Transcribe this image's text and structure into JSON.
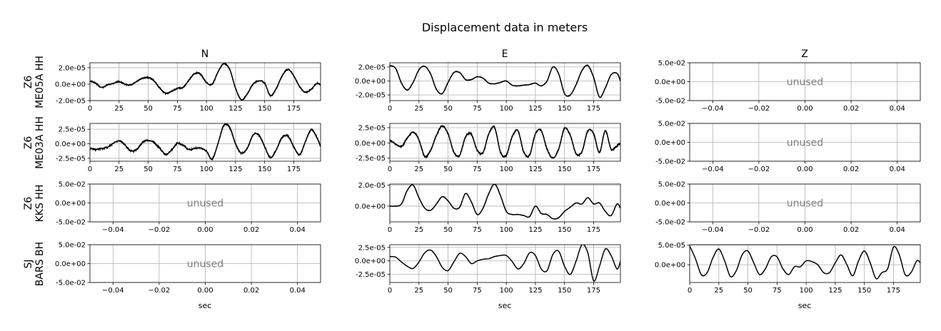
{
  "figure": {
    "title": "Displacement data in meters",
    "xlabel": "sec",
    "unused_label": "unused"
  },
  "columns": [
    "N",
    "E",
    "Z"
  ],
  "rows": [
    {
      "label_line1": "Z6",
      "label_line2": "ME05A HH"
    },
    {
      "label_line1": "Z6",
      "label_line2": "ME03A HH"
    },
    {
      "label_line1": "Z6",
      "label_line2": "KKS HH"
    },
    {
      "label_line1": "SJ",
      "label_line2": "BARS BH"
    }
  ],
  "chart_data": [
    {
      "type": "line",
      "row": 0,
      "col": 0,
      "used": true,
      "xlim": [
        0,
        198
      ],
      "ylim": [
        -2e-05,
        2.6e-05
      ],
      "xticks": [
        "0",
        "25",
        "50",
        "75",
        "100",
        "125",
        "150",
        "175"
      ],
      "yticks": [
        "2.0e-05",
        "0.0e+00",
        "-2.0e-05"
      ],
      "grid": true,
      "series": [
        {
          "x": [
            0,
            5,
            10,
            15,
            20,
            25,
            30,
            35,
            40,
            45,
            50,
            55,
            60,
            65,
            70,
            75,
            80,
            85,
            90,
            95,
            100,
            105,
            110,
            115,
            120,
            125,
            130,
            135,
            140,
            145,
            150,
            155,
            160,
            165,
            170,
            175,
            180,
            185,
            190,
            195,
            198
          ],
          "y": [
            4e-06,
            1e-06,
            -4e-06,
            -1e-06,
            1e-06,
            3e-06,
            0,
            -1e-06,
            3e-06,
            7e-06,
            8e-06,
            4e-06,
            -5e-06,
            -1.1e-05,
            -9e-06,
            -5e-06,
            -4e-06,
            5e-06,
            1.3e-05,
            1.2e-05,
            2e-06,
            0,
            1.5e-05,
            2.5e-05,
            1.8e-05,
            -5e-06,
            -1.9e-05,
            -1.2e-05,
            0,
            4e-06,
            1e-06,
            -1.4e-05,
            -5e-06,
            1e-05,
            1.8e-05,
            1e-05,
            -3e-06,
            -1e-05,
            -6e-06,
            1e-06,
            -1e-06
          ],
          "noise": 1e-06
        }
      ]
    },
    {
      "type": "line",
      "row": 0,
      "col": 1,
      "used": true,
      "xlim": [
        0,
        198
      ],
      "ylim": [
        -2.8e-05,
        2.6e-05
      ],
      "xticks": [
        "0",
        "25",
        "50",
        "75",
        "100",
        "125",
        "150",
        "175"
      ],
      "yticks": [
        "2.0e-05",
        "0.0e+00",
        "-2.0e-05"
      ],
      "grid": true,
      "series": [
        {
          "x": [
            0,
            5,
            10,
            15,
            20,
            25,
            30,
            35,
            40,
            45,
            50,
            55,
            60,
            65,
            70,
            75,
            80,
            85,
            90,
            95,
            100,
            105,
            110,
            115,
            120,
            125,
            130,
            135,
            140,
            145,
            150,
            155,
            160,
            165,
            170,
            175,
            180,
            185,
            190,
            195,
            198
          ],
          "y": [
            2.2e-05,
            1.8e-05,
            -3e-06,
            -1.3e-05,
            -2e-06,
            1.6e-05,
            2.1e-05,
            1e-05,
            -1.2e-05,
            -1.8e-05,
            -2e-06,
            1.2e-05,
            1.2e-05,
            2e-06,
            2e-06,
            6e-06,
            4e-06,
            -3e-06,
            -4e-06,
            -2e-06,
            0,
            -6e-06,
            -7e-06,
            -6e-06,
            -5e-06,
            -3e-06,
            -7e-06,
            0,
            2e-05,
            1e-05,
            -1.8e-05,
            -2e-05,
            -5e-06,
            1.5e-05,
            2.2e-05,
            5e-06,
            -2.3e-05,
            -1e-05,
            9e-06,
            1.1e-05,
            0
          ],
          "noise": 6e-07
        }
      ]
    },
    {
      "type": "line",
      "row": 0,
      "col": 2,
      "used": false,
      "xlim": [
        -0.05,
        0.05
      ],
      "ylim": [
        -0.05,
        0.05
      ],
      "xticks": [
        "−0.04",
        "−0.02",
        "0.00",
        "0.02",
        "0.04"
      ],
      "yticks": [
        "5.0e-02",
        "0.0e+00",
        "-5.0e-02"
      ],
      "grid": true,
      "series": []
    },
    {
      "type": "line",
      "row": 1,
      "col": 0,
      "used": true,
      "xlim": [
        0,
        198
      ],
      "ylim": [
        -3e-05,
        3.5e-05
      ],
      "xticks": [
        "0",
        "25",
        "50",
        "75",
        "100",
        "125",
        "150",
        "175"
      ],
      "yticks": [
        "2.5e-05",
        "0.0e+00",
        "-2.5e-05"
      ],
      "grid": true,
      "series": [
        {
          "x": [
            0,
            5,
            10,
            15,
            20,
            25,
            30,
            35,
            40,
            45,
            50,
            55,
            60,
            65,
            70,
            75,
            80,
            85,
            90,
            95,
            100,
            105,
            110,
            115,
            120,
            125,
            130,
            135,
            140,
            145,
            150,
            155,
            160,
            165,
            170,
            175,
            180,
            185,
            190,
            195,
            198
          ],
          "y": [
            -8e-06,
            -1e-05,
            -8e-06,
            -6e-06,
            1e-06,
            5e-06,
            -2e-06,
            -1.2e-05,
            -1e-05,
            2e-06,
            6e-06,
            2e-06,
            -8e-06,
            -1.8e-05,
            -1.1e-05,
            1e-06,
            -3e-06,
            -1e-05,
            -8e-06,
            -7e-06,
            -1.3e-05,
            -2.6e-05,
            1e-06,
            3.2e-05,
            2.8e-05,
            0,
            -1.6e-05,
            -8e-06,
            1.5e-05,
            1.5e-05,
            -5e-06,
            -2.4e-05,
            -1e-05,
            1.1e-05,
            1.3e-05,
            -5e-06,
            -1.9e-05,
            4e-06,
            2.4e-05,
            1e-05,
            -5e-06
          ],
          "noise": 2e-06
        }
      ]
    },
    {
      "type": "line",
      "row": 1,
      "col": 1,
      "used": true,
      "xlim": [
        0,
        198
      ],
      "ylim": [
        -3e-05,
        3.2e-05
      ],
      "xticks": [
        "0",
        "25",
        "50",
        "75",
        "100",
        "125",
        "150",
        "175"
      ],
      "yticks": [
        "2.5e-05",
        "0.0e+00",
        "-2.5e-05"
      ],
      "grid": true,
      "series": [
        {
          "x": [
            0,
            5,
            10,
            15,
            20,
            25,
            30,
            35,
            40,
            45,
            50,
            55,
            60,
            65,
            70,
            75,
            80,
            85,
            90,
            95,
            100,
            105,
            110,
            115,
            120,
            125,
            130,
            135,
            140,
            145,
            150,
            155,
            160,
            165,
            170,
            175,
            180,
            185,
            190,
            195,
            198
          ],
          "y": [
            5e-06,
            -2e-06,
            -6e-06,
            8e-06,
            1.8e-05,
            5e-06,
            -2.2e-05,
            -1.2e-05,
            1.2e-05,
            2.8e-05,
            1.5e-05,
            -1.5e-05,
            -2e-05,
            1e-05,
            1.4e-05,
            -1.2e-05,
            -1.6e-05,
            1.5e-05,
            2.5e-05,
            -1.5e-05,
            -2e-05,
            1e-05,
            2e-05,
            -1.5e-05,
            -2e-05,
            1.5e-05,
            2e-05,
            -1e-05,
            -2.5e-05,
            -1e-05,
            2.4e-05,
            1.2e-05,
            -1.8e-05,
            -1.4e-05,
            2e-05,
            1.5e-05,
            -1.6e-05,
            2e-05,
            -1e-05,
            -5e-06,
            0
          ],
          "noise": 2e-06
        }
      ]
    },
    {
      "type": "line",
      "row": 1,
      "col": 2,
      "used": false,
      "xlim": [
        -0.05,
        0.05
      ],
      "ylim": [
        -0.05,
        0.05
      ],
      "xticks": [
        "−0.04",
        "−0.02",
        "0.00",
        "0.02",
        "0.04"
      ],
      "yticks": [
        "5.0e-02",
        "0.0e+00",
        "-5.0e-02"
      ],
      "grid": true,
      "series": []
    },
    {
      "type": "line",
      "row": 2,
      "col": 0,
      "used": false,
      "xlim": [
        -0.05,
        0.05
      ],
      "ylim": [
        -0.05,
        0.05
      ],
      "xticks": [
        "−0.04",
        "−0.02",
        "0.00",
        "0.02",
        "0.04"
      ],
      "yticks": [
        "5.0e-02",
        "0.0e+00",
        "-5.0e-02"
      ],
      "grid": true,
      "series": []
    },
    {
      "type": "line",
      "row": 2,
      "col": 1,
      "used": true,
      "xlim": [
        0,
        198
      ],
      "ylim": [
        -1.5e-05,
        2.1e-05
      ],
      "xticks": [
        "0",
        "25",
        "50",
        "75",
        "100",
        "125",
        "150",
        "175"
      ],
      "yticks": [
        "2.0e-05",
        "0.0e+00"
      ],
      "grid": true,
      "series": [
        {
          "x": [
            0,
            5,
            10,
            15,
            20,
            25,
            30,
            35,
            40,
            45,
            50,
            55,
            60,
            65,
            70,
            75,
            80,
            85,
            90,
            95,
            100,
            105,
            110,
            115,
            120,
            125,
            130,
            135,
            140,
            145,
            150,
            155,
            160,
            165,
            170,
            175,
            180,
            185,
            190,
            195,
            198
          ],
          "y": [
            0,
            0,
            2e-06,
            1.5e-05,
            2e-05,
            8e-06,
            -2e-06,
            -4e-06,
            2e-06,
            9e-06,
            5e-06,
            -2e-06,
            -1e-06,
            1.2e-05,
            4e-06,
            -8e-06,
            -2e-06,
            1.2e-05,
            2.1e-05,
            1e-05,
            -5e-06,
            -8e-06,
            -8e-06,
            -9e-06,
            -1e-05,
            0,
            -7e-06,
            -8e-06,
            -1.2e-05,
            -1.1e-05,
            -5e-06,
            -1e-06,
            3e-06,
            2e-06,
            8e-06,
            2e-06,
            3e-06,
            -5e-06,
            -9e-06,
            2e-06,
            -2e-06
          ],
          "noise": 3e-07
        }
      ]
    },
    {
      "type": "line",
      "row": 2,
      "col": 2,
      "used": false,
      "xlim": [
        -0.05,
        0.05
      ],
      "ylim": [
        -0.05,
        0.05
      ],
      "xticks": [
        "−0.04",
        "−0.02",
        "0.00",
        "0.02",
        "0.04"
      ],
      "yticks": [
        "5.0e-02",
        "0.0e+00",
        "-5.0e-02"
      ],
      "grid": true,
      "series": []
    },
    {
      "type": "line",
      "row": 3,
      "col": 0,
      "used": false,
      "xlim": [
        -0.05,
        0.05
      ],
      "ylim": [
        -0.05,
        0.05
      ],
      "xticks": [
        "−0.04",
        "−0.02",
        "0.00",
        "0.02",
        "0.04"
      ],
      "yticks": [
        "5.0e-02",
        "0.0e+00",
        "-5.0e-02"
      ],
      "grid": true,
      "series": []
    },
    {
      "type": "line",
      "row": 3,
      "col": 1,
      "used": true,
      "xlim": [
        0,
        198
      ],
      "ylim": [
        -4e-05,
        3e-05
      ],
      "xticks": [
        "0",
        "25",
        "50",
        "75",
        "100",
        "125",
        "150",
        "175"
      ],
      "yticks": [
        "2.5e-05",
        "0.0e+00",
        "-2.5e-05"
      ],
      "grid": true,
      "series": [
        {
          "x": [
            0,
            5,
            10,
            15,
            20,
            25,
            30,
            35,
            40,
            45,
            50,
            55,
            60,
            65,
            70,
            75,
            80,
            85,
            90,
            95,
            100,
            105,
            110,
            115,
            120,
            125,
            130,
            135,
            140,
            145,
            150,
            155,
            160,
            165,
            170,
            175,
            180,
            185,
            190,
            195,
            198
          ],
          "y": [
            8e-06,
            7e-06,
            -2e-06,
            -1e-05,
            -1.4e-05,
            -2e-06,
            1.5e-05,
            2e-05,
            8e-06,
            -1.2e-05,
            -1.8e-05,
            -2e-06,
            1.4e-05,
            8e-06,
            -5e-06,
            0,
            3e-06,
            4e-06,
            8e-06,
            1e-05,
            1e-05,
            -1e-06,
            -1.5e-05,
            -5e-06,
            1.5e-05,
            1e-05,
            -1.5e-05,
            -1.8e-05,
            1.2e-05,
            1.8e-05,
            -1e-05,
            -2.5e-05,
            0,
            3e-05,
            1.5e-05,
            -3.7e-05,
            -1e-05,
            2.2e-05,
            1e-05,
            -1.5e-05,
            -1e-06
          ],
          "noise": 0
        }
      ]
    },
    {
      "type": "line",
      "row": 3,
      "col": 2,
      "used": true,
      "xlim": [
        0,
        198
      ],
      "ylim": [
        -4.5e-05,
        5.1e-05
      ],
      "xticks": [
        "0",
        "25",
        "50",
        "75",
        "100",
        "125",
        "150",
        "175"
      ],
      "yticks": [
        "5.0e-05",
        "0.0e+00"
      ],
      "grid": true,
      "series": [
        {
          "x": [
            0,
            5,
            10,
            15,
            20,
            25,
            30,
            35,
            40,
            45,
            50,
            55,
            60,
            65,
            70,
            75,
            80,
            85,
            90,
            95,
            100,
            105,
            110,
            115,
            120,
            125,
            130,
            135,
            140,
            145,
            150,
            155,
            160,
            165,
            170,
            175,
            180,
            185,
            190,
            195,
            198
          ],
          "y": [
            4.8e-05,
            1.5e-05,
            -2.5e-05,
            -2e-05,
            1.8e-05,
            4e-05,
            1e-05,
            -3e-05,
            -1.5e-05,
            2.5e-05,
            3.5e-05,
            5e-06,
            -2.5e-05,
            -1e-05,
            2e-05,
            2e-05,
            -1e-05,
            -2.5e-05,
            -5e-06,
            -5e-06,
            1e-05,
            8e-06,
            0,
            -2e-05,
            -2e-05,
            5e-06,
            2.5e-05,
            0,
            -2.8e-05,
            1e-05,
            3.5e-05,
            5e-06,
            -3.5e-05,
            -2e-05,
            -1e-05,
            4.5e-05,
            2.5e-05,
            -2.5e-05,
            -2e-05,
            1e-05,
            5e-06
          ],
          "noise": 0
        }
      ]
    }
  ]
}
